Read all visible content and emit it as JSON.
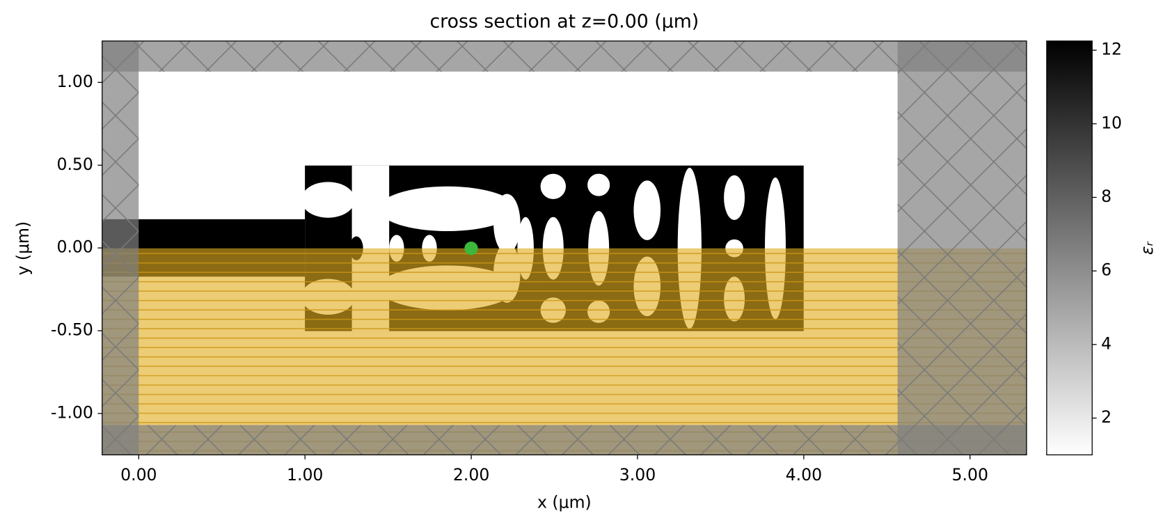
{
  "chart_data": {
    "type": "image",
    "title": "cross section at z=0.00 (μm)",
    "xlabel": "x (μm)",
    "ylabel": "y (μm)",
    "xlim": [
      -0.22,
      5.34
    ],
    "ylim": [
      -1.25,
      1.25
    ],
    "xticks": [
      {
        "value": 0,
        "label": "0.00"
      },
      {
        "value": 1,
        "label": "1.00"
      },
      {
        "value": 2,
        "label": "2.00"
      },
      {
        "value": 3,
        "label": "3.00"
      },
      {
        "value": 4,
        "label": "4.00"
      },
      {
        "value": 5,
        "label": "5.00"
      }
    ],
    "yticks": [
      {
        "value": -1,
        "label": "-1.00"
      },
      {
        "value": -0.5,
        "label": "-0.50"
      },
      {
        "value": 0,
        "label": "0.00"
      },
      {
        "value": 0.5,
        "label": "0.50"
      },
      {
        "value": 1,
        "label": "1.00"
      }
    ],
    "colorbar": {
      "label": "εᵣ",
      "lim": [
        1,
        12.25
      ],
      "ticks": [
        2,
        4,
        6,
        8,
        10,
        12
      ],
      "colors": [
        "#ffffff",
        "#000000"
      ]
    }
  }
}
